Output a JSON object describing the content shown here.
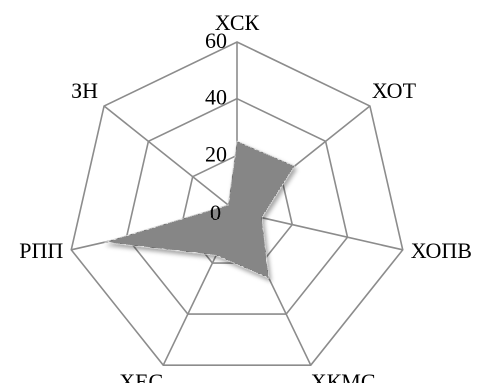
{
  "chart_data": {
    "type": "radar",
    "title": "",
    "axes": [
      "ХСК",
      "ХОТ",
      "ХОПВ",
      "ХКМС",
      "ХЕС",
      "РПП",
      "ЗН"
    ],
    "rlim": [
      0,
      60
    ],
    "rticks": [
      "60",
      "40",
      "20",
      "0"
    ],
    "series": [
      {
        "values": [
          25,
          26,
          9,
          26,
          17,
          48,
          4
        ]
      }
    ],
    "grid": true,
    "legend": "none"
  },
  "colors": {
    "grid": "#8c8c8c",
    "area_dark": "#1a1a1a",
    "area_light": "#ffffff"
  }
}
